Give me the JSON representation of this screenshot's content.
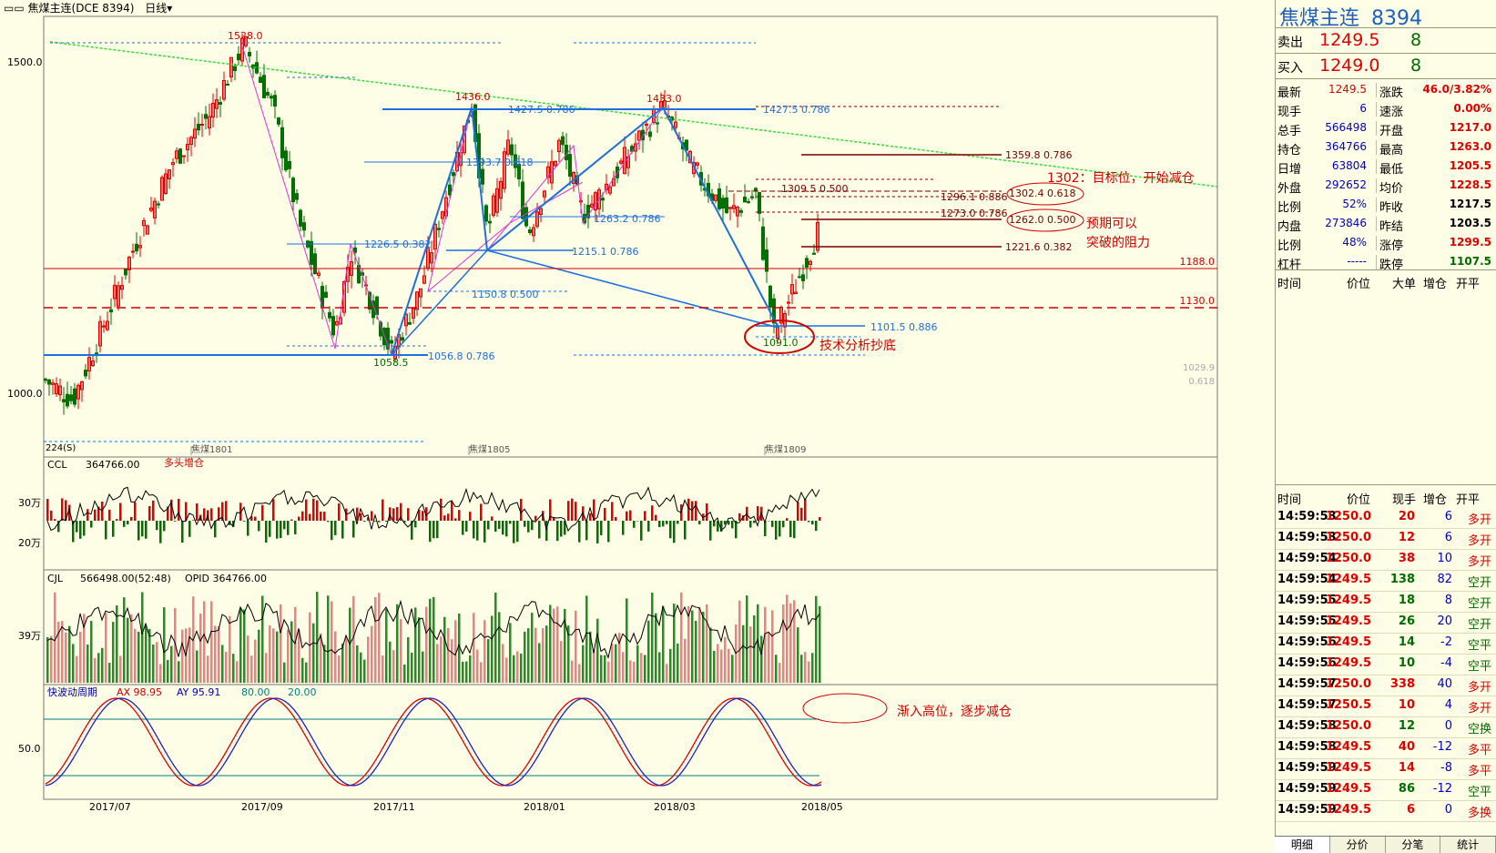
{
  "title_bar": {
    "text": "焦煤主连(DCE 8394)",
    "period": "日线"
  },
  "main_chart": {
    "y_ticks": [
      "1500.0",
      "1000.0"
    ],
    "contract_labels": [
      "焦煤1801",
      "焦煤1805",
      "焦煤1809"
    ],
    "x_ticks": [
      "2017/07",
      "2017/09",
      "2017/11",
      "2018/01",
      "2018/03",
      "2018/05"
    ],
    "left_label": "224(S)",
    "price_tags": [
      "1188.0",
      "1130.0",
      "1029.9",
      "0.618"
    ],
    "pivot_labels": [
      "1528.0",
      "1436.0",
      "1433.0",
      "1058.5",
      "1091.0"
    ],
    "fib_labels": [
      "1427.5 0.786",
      "1427.5 0.786",
      "1393.7 0.618",
      "1226.5 0.382",
      "1263.2 0.786",
      "1215.1 0.786",
      "1150.8 0.500",
      "1056.8 0.786",
      "1101.5 0.886",
      "1359.8 0.786",
      "1309.5 0.500",
      "1302.4 0.618",
      "1296.1 0.886",
      "1273.0 0.786",
      "1262.0 0.500",
      "1221.6 0.382"
    ],
    "annotations": [
      "1302：目标位，开始减仓",
      "预期可以",
      "突破的阻力",
      "技术分析抄底"
    ]
  },
  "ccl_panel": {
    "name": "CCL",
    "value": "364766.00",
    "note": "多头增仓",
    "ticks": [
      "30万",
      "20万"
    ]
  },
  "cjl_panel": {
    "name": "CJL",
    "value": "566498.00(52:48)",
    "opid": "OPID 364766.00",
    "ticks": [
      "39万"
    ]
  },
  "kd_panel": {
    "name": "快波动周期",
    "ax": "AX 98.95",
    "ay": "AY 95.91",
    "l1": "80.00",
    "l2": "20.00",
    "ticks": [
      "50.0"
    ],
    "note": "渐入高位，逐步减仓"
  },
  "quote": {
    "name": "焦煤主连",
    "code": "8394",
    "sell_label": "卖出",
    "sell_price": "1249.5",
    "sell_vol": "8",
    "buy_label": "买入",
    "buy_price": "1249.0",
    "buy_vol": "8",
    "stats": [
      {
        "l1": "最新",
        "v1": "1249.5",
        "l2": "涨跌",
        "v2": "46.0/3.82%"
      },
      {
        "l1": "现手",
        "v1": "6",
        "l2": "速涨",
        "v2": "0.00%"
      },
      {
        "l1": "总手",
        "v1": "566498",
        "l2": "开盘",
        "v2": "1217.0"
      },
      {
        "l1": "持仓",
        "v1": "364766",
        "l2": "最高",
        "v2": "1263.0"
      },
      {
        "l1": "日增",
        "v1": "63804",
        "l2": "最低",
        "v2": "1205.5"
      },
      {
        "l1": "外盘",
        "v1": "292652",
        "l2": "均价",
        "v2": "1228.5"
      },
      {
        "l1": "比例",
        "v1": "52%",
        "l2": "昨收",
        "v2": "1217.5"
      },
      {
        "l1": "内盘",
        "v1": "273846",
        "l2": "昨结",
        "v2": "1203.5"
      },
      {
        "l1": "比例",
        "v1": "48%",
        "l2": "涨停",
        "v2": "1299.5"
      },
      {
        "l1": "杠杆",
        "v1": "-----",
        "l2": "跌停",
        "v2": "1107.5"
      }
    ],
    "header": {
      "time": "时间",
      "price": "价位",
      "big": "大单",
      "change": "增仓",
      "open": "开平"
    }
  },
  "ticks": {
    "header": {
      "time": "时间",
      "price": "价位",
      "vol": "现手",
      "change": "增仓",
      "type": "开平"
    },
    "rows": [
      {
        "time": "14:59:53",
        "price": "1250.0",
        "vol": "20",
        "change": "6",
        "type": "多开"
      },
      {
        "time": "14:59:53",
        "price": "1250.0",
        "vol": "12",
        "change": "6",
        "type": "多开"
      },
      {
        "time": "14:59:54",
        "price": "1250.0",
        "vol": "38",
        "change": "10",
        "type": "多开"
      },
      {
        "time": "14:59:54",
        "price": "1249.5",
        "vol": "138",
        "change": "82",
        "type": "空开"
      },
      {
        "time": "14:59:55",
        "price": "1249.5",
        "vol": "18",
        "change": "8",
        "type": "空开"
      },
      {
        "time": "14:59:55",
        "price": "1249.5",
        "vol": "26",
        "change": "20",
        "type": "空开"
      },
      {
        "time": "14:59:56",
        "price": "1249.5",
        "vol": "14",
        "change": "-2",
        "type": "空平"
      },
      {
        "time": "14:59:56",
        "price": "1249.5",
        "vol": "10",
        "change": "-4",
        "type": "空平"
      },
      {
        "time": "14:59:57",
        "price": "1250.0",
        "vol": "338",
        "change": "40",
        "type": "多开"
      },
      {
        "time": "14:59:57",
        "price": "1250.5",
        "vol": "10",
        "change": "4",
        "type": "多开"
      },
      {
        "time": "14:59:58",
        "price": "1250.0",
        "vol": "12",
        "change": "0",
        "type": "空换"
      },
      {
        "time": "14:59:58",
        "price": "1249.5",
        "vol": "40",
        "change": "-12",
        "type": "多平"
      },
      {
        "time": "14:59:59",
        "price": "1249.5",
        "vol": "14",
        "change": "-8",
        "type": "多平"
      },
      {
        "time": "14:59:59",
        "price": "1249.5",
        "vol": "86",
        "change": "-12",
        "type": "空平"
      },
      {
        "time": "14:59:59",
        "price": "1249.5",
        "vol": "6",
        "change": "0",
        "type": "多换"
      }
    ]
  },
  "tabs": [
    "明细",
    "分价",
    "分笔",
    "统计"
  ],
  "colors": {
    "up": "#e00000",
    "down": "#007000",
    "bg": "#fefde5",
    "fib": "#1e6fe0",
    "trend": "#33dd33",
    "zigzag": "#dd33dd"
  }
}
